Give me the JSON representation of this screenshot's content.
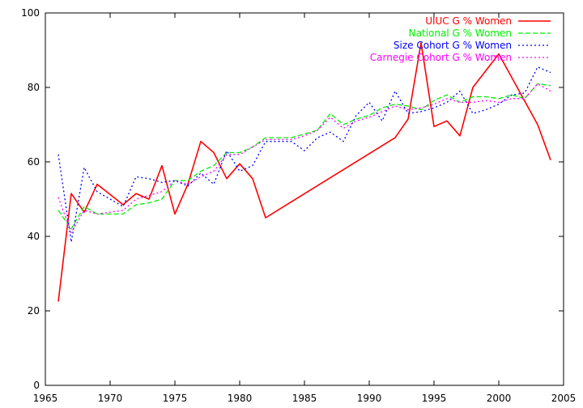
{
  "chart_data": {
    "type": "line",
    "title": "",
    "xlabel": "",
    "ylabel": "",
    "xlim": [
      1965,
      2005
    ],
    "ylim": [
      0,
      100
    ],
    "xticks": [
      "1965",
      "1970",
      "1975",
      "1980",
      "1985",
      "1990",
      "1995",
      "2000",
      "2005"
    ],
    "yticks": [
      "0",
      "20",
      "40",
      "60",
      "80",
      "100"
    ],
    "grid": false,
    "legend": "top-right",
    "series": [
      {
        "name": "UIUC G % Women",
        "color": "#ff0000",
        "dash": "solid",
        "x": [
          1966,
          1967,
          1968,
          1969,
          1971,
          1972,
          1973,
          1974,
          1975,
          1976,
          1977,
          1978,
          1979,
          1980,
          1981,
          1982,
          1992,
          1993,
          1994,
          1995,
          1996,
          1997,
          1998,
          2000,
          2003,
          2004
        ],
        "y": [
          22.5,
          51.5,
          46.5,
          54.0,
          48.5,
          51.5,
          50.0,
          59.0,
          46.0,
          54.0,
          65.5,
          62.5,
          55.5,
          59.5,
          55.5,
          45.0,
          66.5,
          71.5,
          92.0,
          69.5,
          71.0,
          67.0,
          80.0,
          89.0,
          70.0,
          60.5
        ]
      },
      {
        "name": "National G % Women",
        "color": "#00ee00",
        "dash": "dashed",
        "x": [
          1966,
          1967,
          1968,
          1969,
          1970,
          1971,
          1972,
          1973,
          1974,
          1975,
          1976,
          1977,
          1978,
          1979,
          1980,
          1981,
          1982,
          1983,
          1984,
          1985,
          1986,
          1987,
          1988,
          1989,
          1990,
          1991,
          1992,
          1993,
          1994,
          1995,
          1996,
          1997,
          1998,
          1999,
          2000,
          2001,
          2002,
          2003,
          2004
        ],
        "y": [
          47.0,
          42.0,
          48.0,
          46.0,
          46.0,
          46.0,
          48.5,
          49.0,
          50.0,
          55.0,
          55.0,
          57.5,
          59.0,
          62.5,
          62.5,
          64.0,
          66.5,
          66.5,
          66.5,
          67.5,
          68.5,
          73.0,
          70.0,
          71.5,
          72.5,
          74.5,
          75.5,
          75.0,
          74.0,
          76.5,
          78.0,
          76.0,
          77.5,
          77.5,
          77.0,
          78.0,
          77.0,
          81.0,
          80.5
        ]
      },
      {
        "name": "Size Cohort G % Women",
        "color": "#0000ff",
        "dash": "dotted",
        "x": [
          1966,
          1967,
          1968,
          1969,
          1970,
          1971,
          1972,
          1973,
          1974,
          1975,
          1976,
          1977,
          1978,
          1979,
          1980,
          1981,
          1982,
          1983,
          1984,
          1985,
          1986,
          1987,
          1988,
          1989,
          1990,
          1991,
          1992,
          1993,
          1994,
          1995,
          1996,
          1997,
          1998,
          1999,
          2000,
          2001,
          2002,
          2003,
          2004
        ],
        "y": [
          62.0,
          38.5,
          58.5,
          52.0,
          50.0,
          48.0,
          56.0,
          55.5,
          54.5,
          55.0,
          53.5,
          57.0,
          54.0,
          63.0,
          57.5,
          59.0,
          65.5,
          65.5,
          65.5,
          63.0,
          66.5,
          68.0,
          65.5,
          72.5,
          76.0,
          71.0,
          79.0,
          73.0,
          73.5,
          74.5,
          76.0,
          79.0,
          73.0,
          74.0,
          75.5,
          78.0,
          78.5,
          85.5,
          84.0
        ]
      },
      {
        "name": "Carnegie Cohort G % Women",
        "color": "#ff00ff",
        "dash": "dotted",
        "x": [
          1966,
          1967,
          1968,
          1969,
          1970,
          1971,
          1972,
          1973,
          1974,
          1975,
          1976,
          1977,
          1978,
          1979,
          1980,
          1981,
          1982,
          1983,
          1984,
          1985,
          1986,
          1987,
          1988,
          1989,
          1990,
          1991,
          1992,
          1993,
          1994,
          1995,
          1996,
          1997,
          1998,
          1999,
          2000,
          2001,
          2002,
          2003,
          2004
        ],
        "y": [
          50.5,
          41.0,
          47.0,
          46.0,
          46.5,
          47.0,
          50.0,
          51.0,
          52.0,
          55.0,
          54.0,
          56.0,
          57.5,
          62.0,
          62.0,
          64.0,
          66.0,
          66.0,
          66.0,
          67.0,
          68.5,
          72.0,
          69.0,
          71.0,
          72.0,
          73.5,
          75.0,
          74.0,
          74.5,
          75.5,
          77.0,
          76.0,
          76.0,
          76.5,
          76.0,
          77.0,
          77.0,
          81.0,
          79.0
        ]
      }
    ]
  }
}
